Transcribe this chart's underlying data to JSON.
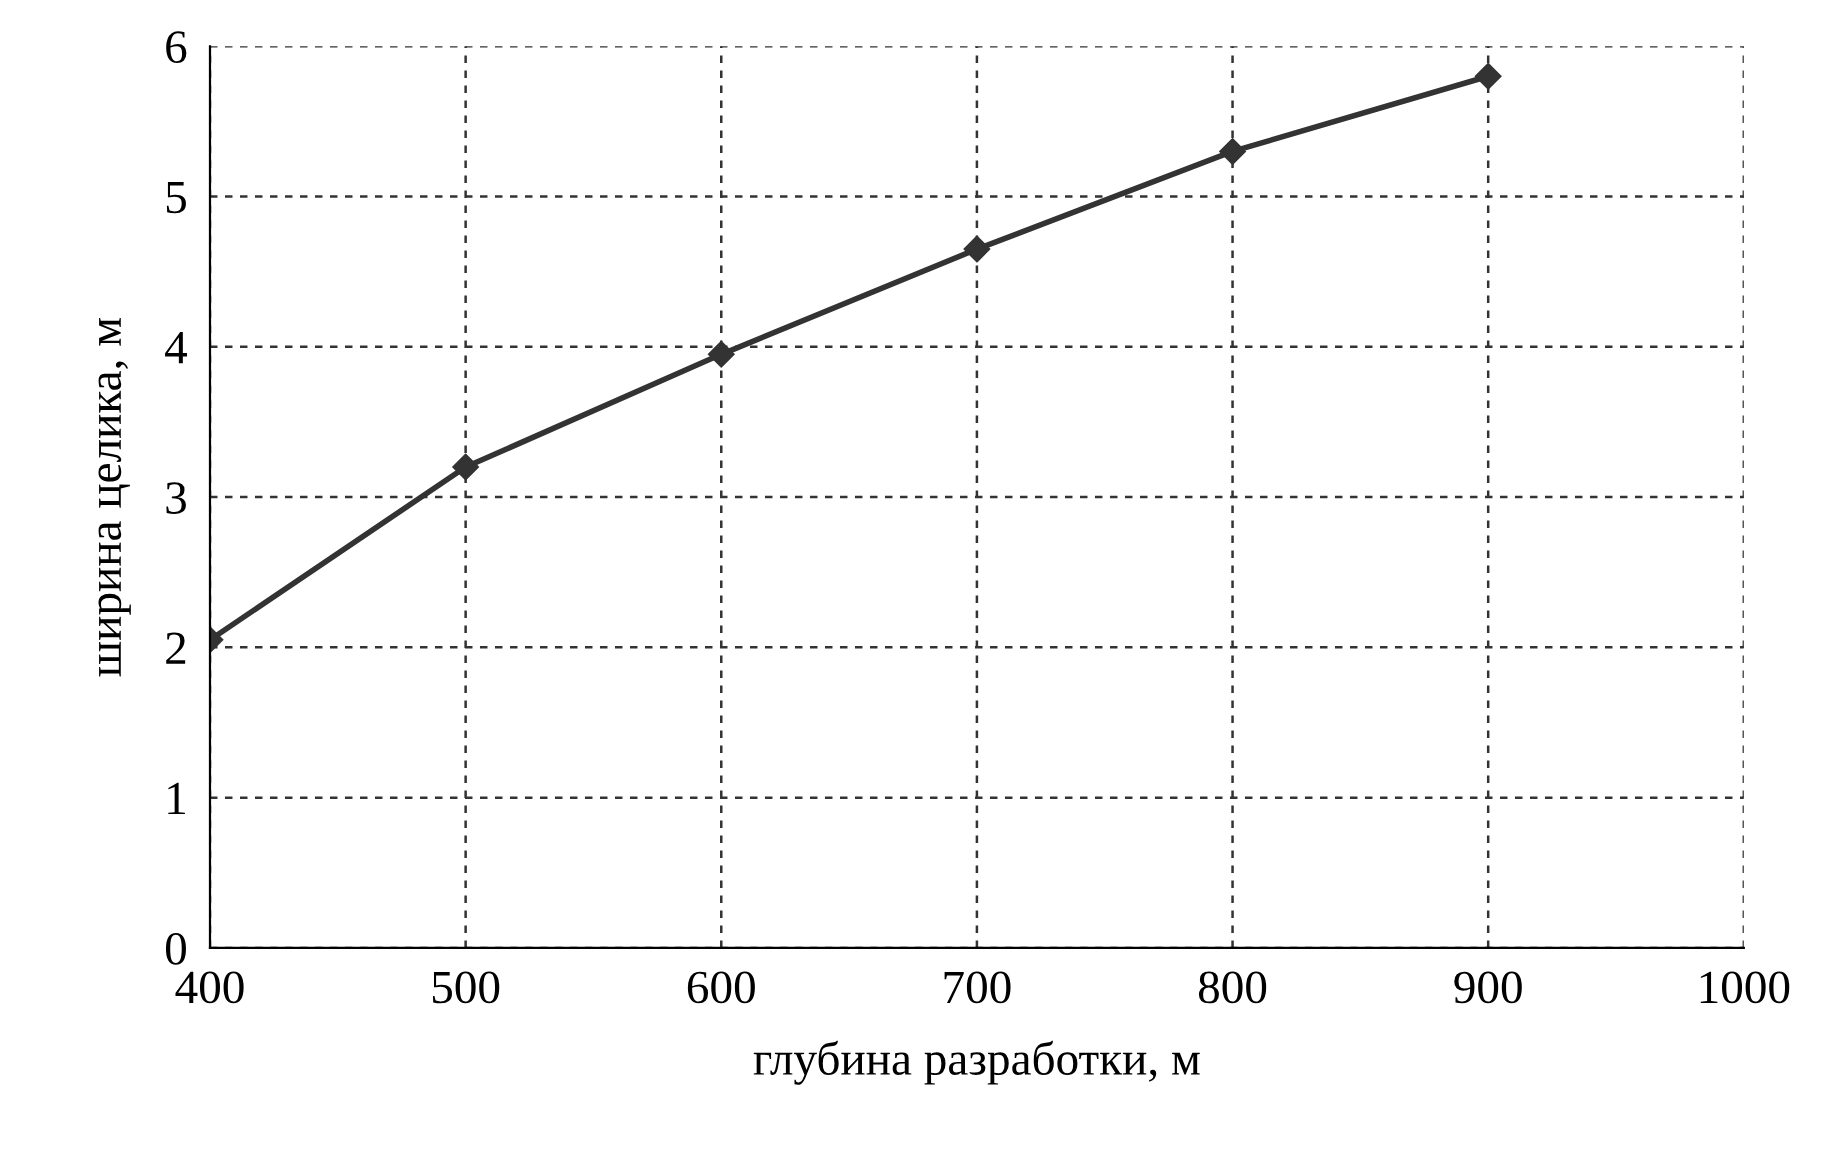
{
  "chart_data": {
    "type": "line",
    "xlabel": "глубина разработки, м",
    "ylabel": "ширина целика, м",
    "x": [
      400,
      500,
      600,
      700,
      800,
      900
    ],
    "series": [
      {
        "color": "#333333",
        "values": [
          2.05,
          3.2,
          3.95,
          4.65,
          5.3,
          5.8
        ]
      }
    ],
    "xlim": [
      400,
      1000
    ],
    "xticks": [
      400,
      500,
      600,
      700,
      800,
      900,
      1000
    ],
    "ylim": [
      0,
      6
    ],
    "yticks": [
      0,
      1,
      2,
      3,
      4,
      5,
      6
    ],
    "grid": true,
    "marker": "diamond",
    "line_style": "solid"
  }
}
